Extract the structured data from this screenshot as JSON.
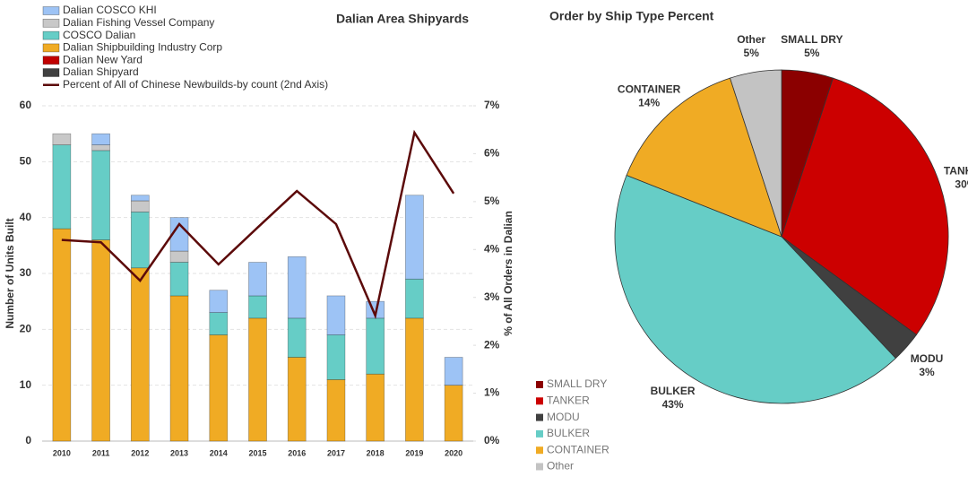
{
  "chart_data": [
    {
      "type": "bar",
      "title": "Dalian Area Shipyards",
      "y_label": "Number of Units Built",
      "y2_label": "% of All Orders in Dalian",
      "stacked": true,
      "grid": true,
      "categories": [
        "2010",
        "2011",
        "2012",
        "2013",
        "2014",
        "2015",
        "2016",
        "2017",
        "2018",
        "2019",
        "2020"
      ],
      "series": [
        {
          "name": "Dalian COSCO KHI",
          "color": "#9dc3f5",
          "values": [
            0,
            2,
            1,
            6,
            4,
            6,
            11,
            7,
            3,
            15,
            5
          ]
        },
        {
          "name": "Dalian Fishing Vessel Company",
          "color": "#c8c8c8",
          "values": [
            2,
            1,
            2,
            2,
            0,
            0,
            0,
            0,
            0,
            0,
            0
          ]
        },
        {
          "name": "COSCO Dalian",
          "color": "#66cdc6",
          "values": [
            15,
            16,
            10,
            6,
            4,
            4,
            7,
            8,
            10,
            7,
            0
          ]
        },
        {
          "name": "Dalian Shipbuilding Industry Corp",
          "color": "#f0ab24",
          "values": [
            38,
            36,
            31,
            26,
            19,
            22,
            15,
            11,
            12,
            22,
            10
          ]
        },
        {
          "name": "Dalian New Yard",
          "color": "#c00000",
          "values": [
            0,
            0,
            0,
            0,
            0,
            0,
            0,
            0,
            0,
            0,
            0
          ]
        },
        {
          "name": "Dalian Shipyard",
          "color": "#404040",
          "values": [
            0,
            0,
            0,
            0,
            0,
            0,
            0,
            0,
            0,
            0,
            0
          ]
        },
        {
          "name": "Percent of All of Chinese Newbuilds-by count (2nd Axis)",
          "color": "#5c0a0a",
          "type": "line",
          "axis": "y2",
          "values": [
            4.2,
            4.15,
            3.35,
            4.53,
            3.69,
            4.46,
            5.22,
            4.53,
            2.62,
            6.44,
            5.17
          ]
        }
      ],
      "ylim": [
        0,
        60
      ],
      "yticks": [
        0,
        10,
        20,
        30,
        40,
        50,
        60
      ],
      "y2lim": [
        0,
        7
      ],
      "y2ticks": [
        {
          "value": 0,
          "label": "0%"
        },
        {
          "value": 1,
          "label": "1%"
        },
        {
          "value": 2,
          "label": "2%"
        },
        {
          "value": 3,
          "label": "3%"
        },
        {
          "value": 4,
          "label": "4%"
        },
        {
          "value": 5,
          "label": "5%"
        },
        {
          "value": 6,
          "label": "6%"
        },
        {
          "value": 7,
          "label": "7%"
        }
      ]
    },
    {
      "type": "pie",
      "title": "Order by Ship Type Percent",
      "categories": [
        "SMALL DRY",
        "TANKER",
        "MODU",
        "BULKER",
        "CONTAINER",
        "Other"
      ],
      "values": [
        5,
        30,
        3,
        43,
        14,
        5
      ],
      "value_labels": [
        "5%",
        "30%",
        "3%",
        "43%",
        "14%",
        "5%"
      ],
      "colors": [
        "#8b0000",
        "#cc0000",
        "#404040",
        "#66cdc6",
        "#f0ab24",
        "#c3c3c3"
      ]
    }
  ]
}
